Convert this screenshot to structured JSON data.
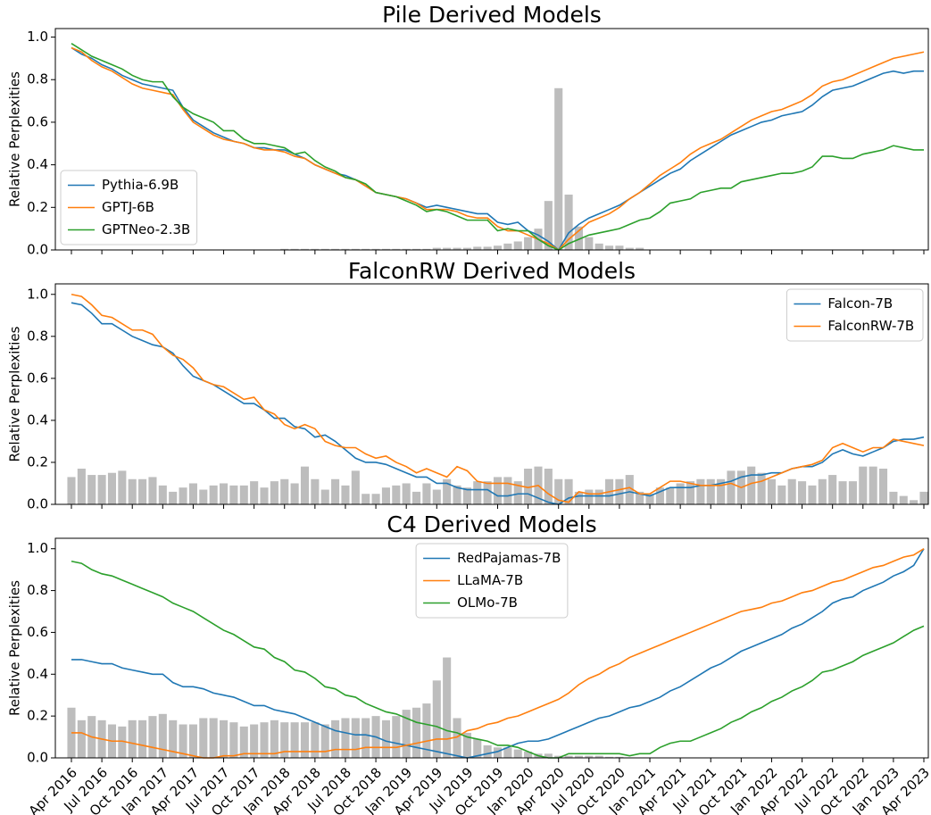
{
  "chart_data": [
    {
      "type": "line",
      "title": "Pile Derived Models",
      "ylabel": "Relative Perplexities",
      "ylim": [
        0,
        1.04
      ],
      "yticks": [
        {
          "value": 0,
          "label": "0.0"
        },
        {
          "value": 0.2,
          "label": "0.2"
        },
        {
          "value": 0.4,
          "label": "0.4"
        },
        {
          "value": 0.6,
          "label": "0.6"
        },
        {
          "value": 0.8,
          "label": "0.8"
        },
        {
          "value": 1,
          "label": "1.0"
        }
      ],
      "legend": "lower left",
      "bar_color": "#bdbdbd",
      "bar_values": [
        0,
        0,
        0,
        0,
        0,
        0,
        0,
        0,
        0,
        0,
        0,
        0,
        0,
        0,
        0,
        0,
        0,
        0,
        0,
        0,
        0,
        0.005,
        0.005,
        0.005,
        0.005,
        0.005,
        0.005,
        0.005,
        0.005,
        0.005,
        0.005,
        0.005,
        0.005,
        0.005,
        0.005,
        0.005,
        0.01,
        0.01,
        0.01,
        0.01,
        0.015,
        0.015,
        0.02,
        0.03,
        0.04,
        0.06,
        0.1,
        0.23,
        0.76,
        0.26,
        0.11,
        0.06,
        0.03,
        0.02,
        0.02,
        0.01,
        0.01,
        0,
        0,
        0,
        0,
        0,
        0,
        0,
        0,
        0,
        0,
        0,
        0,
        0,
        0,
        0,
        0,
        0,
        0,
        0,
        0,
        0,
        0,
        0,
        0,
        0,
        0,
        0,
        0
      ],
      "series": [
        {
          "name": "Pythia-6.9B",
          "color": "#1f77b4",
          "values": [
            0.95,
            0.92,
            0.9,
            0.87,
            0.85,
            0.82,
            0.8,
            0.78,
            0.77,
            0.76,
            0.75,
            0.67,
            0.61,
            0.58,
            0.55,
            0.53,
            0.51,
            0.5,
            0.48,
            0.48,
            0.47,
            0.47,
            0.45,
            0.43,
            0.4,
            0.38,
            0.36,
            0.35,
            0.33,
            0.3,
            0.27,
            0.26,
            0.25,
            0.24,
            0.22,
            0.2,
            0.21,
            0.2,
            0.19,
            0.18,
            0.17,
            0.17,
            0.13,
            0.12,
            0.13,
            0.09,
            0.07,
            0.04,
            0,
            0.08,
            0.12,
            0.15,
            0.17,
            0.19,
            0.21,
            0.24,
            0.27,
            0.3,
            0.33,
            0.36,
            0.38,
            0.42,
            0.45,
            0.48,
            0.51,
            0.54,
            0.56,
            0.58,
            0.6,
            0.61,
            0.63,
            0.64,
            0.65,
            0.68,
            0.72,
            0.75,
            0.76,
            0.77,
            0.79,
            0.81,
            0.83,
            0.84,
            0.83,
            0.84,
            0.84
          ]
        },
        {
          "name": "GPTJ-6B",
          "color": "#ff7f0e",
          "values": [
            0.95,
            0.93,
            0.89,
            0.86,
            0.84,
            0.81,
            0.78,
            0.76,
            0.75,
            0.74,
            0.73,
            0.66,
            0.6,
            0.57,
            0.54,
            0.52,
            0.51,
            0.5,
            0.48,
            0.47,
            0.47,
            0.46,
            0.44,
            0.43,
            0.4,
            0.38,
            0.36,
            0.34,
            0.33,
            0.3,
            0.27,
            0.26,
            0.25,
            0.24,
            0.22,
            0.19,
            0.19,
            0.19,
            0.18,
            0.16,
            0.15,
            0.15,
            0.11,
            0.09,
            0.09,
            0.07,
            0.05,
            0.03,
            0,
            0.05,
            0.09,
            0.13,
            0.15,
            0.17,
            0.2,
            0.24,
            0.27,
            0.31,
            0.35,
            0.38,
            0.41,
            0.45,
            0.48,
            0.5,
            0.52,
            0.55,
            0.58,
            0.61,
            0.63,
            0.65,
            0.66,
            0.68,
            0.7,
            0.73,
            0.77,
            0.79,
            0.8,
            0.82,
            0.84,
            0.86,
            0.88,
            0.9,
            0.91,
            0.92,
            0.93
          ]
        },
        {
          "name": "GPTNeo-2.3B",
          "color": "#2ca02c",
          "values": [
            0.97,
            0.94,
            0.91,
            0.89,
            0.87,
            0.85,
            0.82,
            0.8,
            0.79,
            0.79,
            0.72,
            0.67,
            0.64,
            0.62,
            0.6,
            0.56,
            0.56,
            0.52,
            0.5,
            0.5,
            0.49,
            0.48,
            0.45,
            0.46,
            0.42,
            0.39,
            0.37,
            0.34,
            0.33,
            0.31,
            0.27,
            0.26,
            0.25,
            0.23,
            0.21,
            0.18,
            0.19,
            0.18,
            0.16,
            0.14,
            0.14,
            0.14,
            0.09,
            0.1,
            0.09,
            0.09,
            0.05,
            0.02,
            0,
            0.03,
            0.05,
            0.07,
            0.08,
            0.09,
            0.1,
            0.12,
            0.14,
            0.15,
            0.18,
            0.22,
            0.23,
            0.24,
            0.27,
            0.28,
            0.29,
            0.29,
            0.32,
            0.33,
            0.34,
            0.35,
            0.36,
            0.36,
            0.37,
            0.39,
            0.44,
            0.44,
            0.43,
            0.43,
            0.45,
            0.46,
            0.47,
            0.49,
            0.48,
            0.47,
            0.47
          ]
        }
      ]
    },
    {
      "type": "line",
      "title": "FalconRW Derived Models",
      "ylabel": "Relative Perplexities",
      "ylim": [
        0,
        1.05
      ],
      "yticks": [
        {
          "value": 0,
          "label": "0.0"
        },
        {
          "value": 0.2,
          "label": "0.2"
        },
        {
          "value": 0.4,
          "label": "0.4"
        },
        {
          "value": 0.6,
          "label": "0.6"
        },
        {
          "value": 0.8,
          "label": "0.8"
        },
        {
          "value": 1,
          "label": "1.0"
        }
      ],
      "legend": "upper right",
      "bar_color": "#bdbdbd",
      "bar_values": [
        0.13,
        0.17,
        0.14,
        0.14,
        0.15,
        0.16,
        0.12,
        0.12,
        0.13,
        0.09,
        0.06,
        0.08,
        0.1,
        0.07,
        0.09,
        0.1,
        0.09,
        0.09,
        0.11,
        0.08,
        0.11,
        0.12,
        0.1,
        0.18,
        0.12,
        0.07,
        0.12,
        0.09,
        0.16,
        0.05,
        0.05,
        0.08,
        0.09,
        0.1,
        0.06,
        0.1,
        0.07,
        0.12,
        0.09,
        0.08,
        0.11,
        0.11,
        0.13,
        0.13,
        0.11,
        0.17,
        0.18,
        0.17,
        0.12,
        0.12,
        0.06,
        0.07,
        0.07,
        0.12,
        0.12,
        0.14,
        0.06,
        0.05,
        0.08,
        0.08,
        0.1,
        0.11,
        0.12,
        0.12,
        0.12,
        0.16,
        0.16,
        0.18,
        0.15,
        0.12,
        0.09,
        0.12,
        0.11,
        0.09,
        0.12,
        0.14,
        0.11,
        0.11,
        0.18,
        0.18,
        0.17,
        0.06,
        0.04,
        0.02,
        0.06
      ],
      "series": [
        {
          "name": "Falcon-7B",
          "color": "#1f77b4",
          "values": [
            0.96,
            0.95,
            0.91,
            0.86,
            0.86,
            0.83,
            0.8,
            0.78,
            0.76,
            0.75,
            0.72,
            0.66,
            0.61,
            0.59,
            0.57,
            0.54,
            0.51,
            0.48,
            0.48,
            0.45,
            0.41,
            0.41,
            0.37,
            0.36,
            0.32,
            0.33,
            0.3,
            0.26,
            0.22,
            0.2,
            0.2,
            0.19,
            0.17,
            0.15,
            0.13,
            0.13,
            0.1,
            0.1,
            0.08,
            0.07,
            0.07,
            0.07,
            0.04,
            0.04,
            0.05,
            0.05,
            0.03,
            0.01,
            0,
            0.03,
            0.04,
            0.04,
            0.04,
            0.04,
            0.05,
            0.06,
            0.05,
            0.04,
            0.06,
            0.08,
            0.08,
            0.08,
            0.09,
            0.09,
            0.1,
            0.11,
            0.13,
            0.14,
            0.14,
            0.15,
            0.15,
            0.17,
            0.18,
            0.18,
            0.2,
            0.24,
            0.26,
            0.24,
            0.23,
            0.25,
            0.27,
            0.3,
            0.31,
            0.31,
            0.32
          ]
        },
        {
          "name": "FalconRW-7B",
          "color": "#ff7f0e",
          "values": [
            1.0,
            0.99,
            0.95,
            0.9,
            0.89,
            0.86,
            0.83,
            0.83,
            0.81,
            0.75,
            0.71,
            0.69,
            0.65,
            0.59,
            0.57,
            0.56,
            0.53,
            0.5,
            0.51,
            0.45,
            0.43,
            0.38,
            0.36,
            0.38,
            0.36,
            0.3,
            0.28,
            0.27,
            0.27,
            0.24,
            0.22,
            0.23,
            0.2,
            0.18,
            0.15,
            0.17,
            0.15,
            0.13,
            0.18,
            0.16,
            0.11,
            0.1,
            0.1,
            0.1,
            0.09,
            0.08,
            0.09,
            0.05,
            0.02,
            0.01,
            0.06,
            0.05,
            0.05,
            0.06,
            0.07,
            0.08,
            0.05,
            0.05,
            0.08,
            0.11,
            0.11,
            0.1,
            0.09,
            0.09,
            0.09,
            0.1,
            0.08,
            0.1,
            0.11,
            0.13,
            0.15,
            0.17,
            0.18,
            0.19,
            0.21,
            0.27,
            0.29,
            0.27,
            0.25,
            0.27,
            0.27,
            0.31,
            0.3,
            0.29,
            0.28
          ]
        }
      ]
    },
    {
      "type": "line",
      "title": "C4 Derived Models",
      "ylabel": "Relative Perplexities",
      "ylim": [
        0,
        1.05
      ],
      "yticks": [
        {
          "value": 0,
          "label": "0.0"
        },
        {
          "value": 0.2,
          "label": "0.2"
        },
        {
          "value": 0.4,
          "label": "0.4"
        },
        {
          "value": 0.6,
          "label": "0.6"
        },
        {
          "value": 0.8,
          "label": "0.8"
        },
        {
          "value": 1,
          "label": "1.0"
        }
      ],
      "legend": "upper center",
      "bar_color": "#bdbdbd",
      "categories": [
        "Apr 2016",
        null,
        null,
        "Jul 2016",
        null,
        null,
        "Oct 2016",
        null,
        null,
        "Jan 2017",
        null,
        null,
        "Apr 2017",
        null,
        null,
        "Jul 2017",
        null,
        null,
        "Oct 2017",
        null,
        null,
        "Jan 2018",
        null,
        null,
        "Apr 2018",
        null,
        null,
        "Jul 2018",
        null,
        null,
        "Oct 2018",
        null,
        null,
        "Jan 2019",
        null,
        null,
        "Apr 2019",
        null,
        null,
        "Jul 2019",
        null,
        null,
        "Oct 2019",
        null,
        null,
        "Jan 2020",
        null,
        null,
        "Apr 2020",
        null,
        null,
        "Jul 2020",
        null,
        null,
        "Oct 2020",
        null,
        null,
        "Jan 2021",
        null,
        null,
        "Apr 2021",
        null,
        null,
        "Jul 2021",
        null,
        null,
        "Oct 2021",
        null,
        null,
        "Jan 2022",
        null,
        null,
        "Apr 2022",
        null,
        null,
        "Jul 2022",
        null,
        null,
        "Oct 2022",
        null,
        null,
        "Jan 2023",
        null,
        null,
        "Apr 2023"
      ],
      "bar_values": [
        0.24,
        0.18,
        0.2,
        0.18,
        0.16,
        0.15,
        0.18,
        0.18,
        0.2,
        0.21,
        0.18,
        0.16,
        0.16,
        0.19,
        0.19,
        0.18,
        0.17,
        0.15,
        0.16,
        0.17,
        0.18,
        0.17,
        0.17,
        0.17,
        0.17,
        0.16,
        0.18,
        0.19,
        0.19,
        0.19,
        0.2,
        0.18,
        0.2,
        0.23,
        0.24,
        0.26,
        0.37,
        0.48,
        0.19,
        0.12,
        0.09,
        0.06,
        0.05,
        0.05,
        0.04,
        0.03,
        0.02,
        0.02,
        0.01,
        0.01,
        0.01,
        0.01,
        0.01,
        0.005,
        0.005,
        0,
        0,
        0,
        0,
        0,
        0,
        0,
        0,
        0,
        0,
        0,
        0,
        0,
        0,
        0,
        0,
        0,
        0,
        0,
        0,
        0,
        0,
        0,
        0,
        0,
        0,
        0,
        0,
        0,
        0
      ],
      "series": [
        {
          "name": "RedPajamas-7B",
          "color": "#1f77b4",
          "values": [
            0.47,
            0.47,
            0.46,
            0.45,
            0.45,
            0.43,
            0.42,
            0.41,
            0.4,
            0.4,
            0.36,
            0.34,
            0.34,
            0.33,
            0.31,
            0.3,
            0.29,
            0.27,
            0.25,
            0.25,
            0.23,
            0.22,
            0.21,
            0.19,
            0.17,
            0.15,
            0.13,
            0.12,
            0.11,
            0.11,
            0.1,
            0.08,
            0.07,
            0.06,
            0.05,
            0.04,
            0.03,
            0.02,
            0.01,
            0,
            0.01,
            0.02,
            0.03,
            0.05,
            0.07,
            0.08,
            0.08,
            0.09,
            0.11,
            0.13,
            0.15,
            0.17,
            0.19,
            0.2,
            0.22,
            0.24,
            0.25,
            0.27,
            0.29,
            0.32,
            0.34,
            0.37,
            0.4,
            0.43,
            0.45,
            0.48,
            0.51,
            0.53,
            0.55,
            0.57,
            0.59,
            0.62,
            0.64,
            0.67,
            0.7,
            0.74,
            0.76,
            0.77,
            0.8,
            0.82,
            0.84,
            0.87,
            0.89,
            0.92,
            1.0
          ]
        },
        {
          "name": "LLaMA-7B",
          "color": "#ff7f0e",
          "values": [
            0.12,
            0.12,
            0.1,
            0.09,
            0.08,
            0.08,
            0.07,
            0.06,
            0.05,
            0.04,
            0.03,
            0.02,
            0.01,
            0,
            0,
            0.01,
            0.01,
            0.02,
            0.02,
            0.02,
            0.02,
            0.03,
            0.03,
            0.03,
            0.03,
            0.03,
            0.04,
            0.04,
            0.04,
            0.05,
            0.05,
            0.05,
            0.05,
            0.06,
            0.07,
            0.08,
            0.09,
            0.09,
            0.1,
            0.13,
            0.14,
            0.16,
            0.17,
            0.19,
            0.2,
            0.22,
            0.24,
            0.26,
            0.28,
            0.31,
            0.35,
            0.38,
            0.4,
            0.43,
            0.45,
            0.48,
            0.5,
            0.52,
            0.54,
            0.56,
            0.58,
            0.6,
            0.62,
            0.64,
            0.66,
            0.68,
            0.7,
            0.71,
            0.72,
            0.74,
            0.75,
            0.77,
            0.79,
            0.8,
            0.82,
            0.84,
            0.85,
            0.87,
            0.89,
            0.91,
            0.92,
            0.94,
            0.96,
            0.97,
            1.0
          ]
        },
        {
          "name": "OLMo-7B",
          "color": "#2ca02c",
          "values": [
            0.94,
            0.93,
            0.9,
            0.88,
            0.87,
            0.85,
            0.83,
            0.81,
            0.79,
            0.77,
            0.74,
            0.72,
            0.7,
            0.67,
            0.64,
            0.61,
            0.59,
            0.56,
            0.53,
            0.52,
            0.48,
            0.46,
            0.42,
            0.41,
            0.38,
            0.34,
            0.33,
            0.3,
            0.29,
            0.26,
            0.24,
            0.22,
            0.21,
            0.19,
            0.17,
            0.16,
            0.15,
            0.13,
            0.12,
            0.1,
            0.09,
            0.08,
            0.06,
            0.06,
            0.05,
            0.03,
            0.01,
            0,
            0,
            0.02,
            0.02,
            0.02,
            0.02,
            0.02,
            0.02,
            0.01,
            0.02,
            0.02,
            0.05,
            0.07,
            0.08,
            0.08,
            0.1,
            0.12,
            0.14,
            0.17,
            0.19,
            0.22,
            0.24,
            0.27,
            0.29,
            0.32,
            0.34,
            0.37,
            0.41,
            0.42,
            0.44,
            0.46,
            0.49,
            0.51,
            0.53,
            0.55,
            0.58,
            0.61,
            0.63
          ]
        }
      ]
    }
  ]
}
